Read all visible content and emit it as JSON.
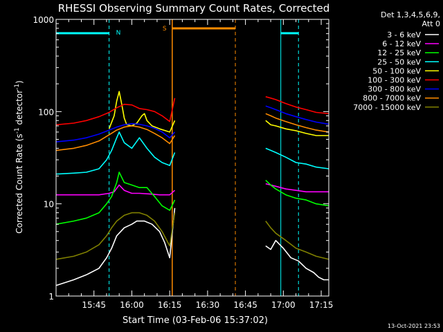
{
  "colors": {
    "background": "#000000",
    "axes": "#ffffff",
    "night_marker": "#00ffff",
    "saa_marker": "#ff8c00"
  },
  "chart_data": {
    "type": "line",
    "title": "RHESSI Observing Summary Count Rates, Corrected",
    "xlabel": "Start Time (03-Feb-06 15:37:02)",
    "ylabel_main": "Corrected Count Rate (s",
    "ylabel_sup1": "-1",
    "ylabel_mid": " detector",
    "ylabel_sup2": "-1",
    "ylabel_end": ")",
    "yscale": "log",
    "ylim": [
      1,
      1000
    ],
    "xlim_min": [
      -7,
      101
    ],
    "x_ticks": [
      {
        "min": 8,
        "label": "15:45"
      },
      {
        "min": 23,
        "label": "16:00"
      },
      {
        "min": 38,
        "label": "16:15"
      },
      {
        "min": 53,
        "label": "16:30"
      },
      {
        "min": 68,
        "label": "16:45"
      },
      {
        "min": 83,
        "label": "17:00"
      },
      {
        "min": 98,
        "label": "17:15"
      }
    ],
    "y_ticks": [
      {
        "value": 1,
        "label": "1"
      },
      {
        "value": 10,
        "label": "10"
      },
      {
        "value": 100,
        "label": "100"
      },
      {
        "value": 1000,
        "label": "1000"
      }
    ],
    "legend_header": [
      "Det 1,3,4,5,6,9,",
      "Att 0"
    ],
    "legend_position": "right",
    "markers": {
      "night_label": "N",
      "saa_label": "S",
      "night_solid_lines_min": [
        -7,
        82
      ],
      "night_dashed_lines_min": [
        14,
        89
      ],
      "night_bars": [
        [
          -7,
          14
        ],
        [
          82,
          89
        ]
      ],
      "saa_solid_line_min": 39,
      "saa_dashed_line_min": 64,
      "saa_bar": [
        39,
        64
      ]
    },
    "series": [
      {
        "name": "3 - 6 keV",
        "color": "#ffffff",
        "x": [
          -7,
          0,
          5,
          10,
          13,
          15,
          17,
          20,
          23,
          25,
          28,
          31,
          34,
          36,
          38,
          40,
          76,
          78,
          80,
          83,
          86,
          89,
          92,
          95,
          97,
          99,
          101
        ],
        "y": [
          1.3,
          1.5,
          1.7,
          2.0,
          2.6,
          3.3,
          4.5,
          5.5,
          6.0,
          6.5,
          6.5,
          6.0,
          5.0,
          3.8,
          2.6,
          9.0,
          3.5,
          3.2,
          4.0,
          3.3,
          2.6,
          2.4,
          2.0,
          1.8,
          1.6,
          1.5,
          1.5
        ]
      },
      {
        "name": "6 - 12 keV",
        "color": "#ff00ff",
        "x": [
          -7,
          0,
          5,
          10,
          14,
          16,
          18,
          20,
          23,
          26,
          30,
          34,
          38,
          40,
          76,
          78,
          80,
          84,
          88,
          92,
          96,
          101
        ],
        "y": [
          12.5,
          12.5,
          12.5,
          12.5,
          13,
          13.5,
          16,
          14,
          13,
          13,
          12.8,
          12.5,
          12.5,
          14,
          16.5,
          16,
          15.5,
          14.5,
          14,
          13.5,
          13.5,
          13.5
        ]
      },
      {
        "name": "12 - 25 keV",
        "color": "#00ff00",
        "x": [
          -7,
          0,
          5,
          10,
          13,
          15,
          17,
          18,
          20,
          23,
          26,
          29,
          32,
          35,
          38,
          40,
          76,
          78,
          80,
          84,
          88,
          92,
          96,
          101
        ],
        "y": [
          6.0,
          6.5,
          7.0,
          8.0,
          10,
          12,
          17,
          22,
          17,
          16,
          15,
          15,
          12,
          9.5,
          8.5,
          11,
          18,
          16,
          14.5,
          12.5,
          11.5,
          11,
          10,
          9.5
        ]
      },
      {
        "name": "25 - 50 keV",
        "color": "#00ffff",
        "x": [
          -7,
          0,
          5,
          10,
          13,
          15,
          17,
          18,
          20,
          23,
          26,
          29,
          32,
          35,
          38,
          40,
          76,
          78,
          80,
          84,
          88,
          92,
          96,
          101
        ],
        "y": [
          21,
          21.5,
          22,
          24,
          30,
          38,
          52,
          60,
          46,
          40,
          52,
          40,
          32,
          28,
          26,
          36,
          40,
          38,
          36,
          32,
          28,
          27,
          25,
          24
        ]
      },
      {
        "name": "50 - 100 keV",
        "color": "#ffff00",
        "x": [
          -7,
          14,
          16,
          17,
          18,
          19,
          20,
          21,
          23,
          25,
          27,
          28,
          29,
          31,
          34,
          38,
          40,
          76,
          78,
          80,
          84,
          88,
          92,
          96,
          101
        ],
        "y": [
          50,
          65,
          90,
          130,
          165,
          120,
          85,
          72,
          70,
          75,
          90,
          95,
          80,
          70,
          65,
          60,
          80,
          80,
          72,
          70,
          65,
          62,
          58,
          55,
          55
        ]
      },
      {
        "name": "100 - 300 keV",
        "color": "#ff0000",
        "x": [
          -7,
          0,
          5,
          10,
          14,
          17,
          20,
          23,
          26,
          29,
          32,
          35,
          38,
          40,
          76,
          78,
          80,
          84,
          88,
          92,
          96,
          101
        ],
        "y": [
          72,
          75,
          80,
          88,
          98,
          110,
          120,
          118,
          108,
          105,
          100,
          90,
          78,
          140,
          145,
          140,
          135,
          122,
          112,
          105,
          98,
          95
        ]
      },
      {
        "name": "300 - 800 keV",
        "color": "#0000ff",
        "x": [
          -7,
          0,
          5,
          10,
          14,
          17,
          20,
          23,
          26,
          29,
          32,
          35,
          38,
          40,
          76,
          78,
          80,
          84,
          88,
          92,
          96,
          101
        ],
        "y": [
          47,
          49,
          52,
          57,
          63,
          68,
          72,
          74,
          73,
          70,
          66,
          60,
          52,
          60,
          115,
          110,
          105,
          95,
          88,
          82,
          77,
          73
        ]
      },
      {
        "name": "800 - 7000 keV",
        "color": "#ff8c00",
        "x": [
          -7,
          0,
          5,
          10,
          14,
          17,
          20,
          23,
          26,
          29,
          32,
          35,
          38,
          40,
          76,
          78,
          80,
          84,
          88,
          92,
          96,
          101
        ],
        "y": [
          38,
          40,
          43,
          48,
          56,
          63,
          68,
          70,
          68,
          64,
          58,
          52,
          45,
          55,
          95,
          90,
          85,
          78,
          72,
          67,
          63,
          60
        ]
      },
      {
        "name": "7000 - 15000 keV",
        "color": "#808000",
        "x": [
          -7,
          0,
          5,
          10,
          13,
          15,
          17,
          20,
          23,
          26,
          29,
          32,
          35,
          38,
          40,
          76,
          78,
          80,
          84,
          88,
          92,
          96,
          101
        ],
        "y": [
          2.5,
          2.7,
          3.0,
          3.6,
          4.5,
          5.5,
          6.5,
          7.5,
          8.0,
          8.0,
          7.5,
          6.5,
          5.0,
          3.5,
          8.0,
          6.5,
          5.5,
          4.8,
          4.0,
          3.3,
          3.0,
          2.7,
          2.5
        ]
      }
    ]
  },
  "timestamp": "13-Oct-2021 23:53"
}
